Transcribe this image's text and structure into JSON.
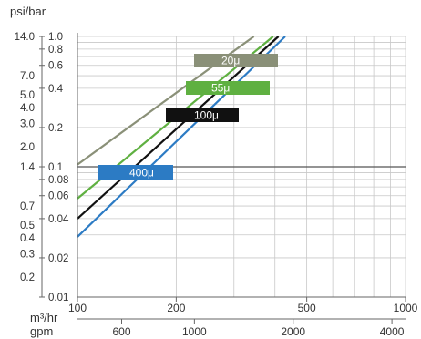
{
  "chart_data": {
    "type": "line",
    "xlabel": "m³/hr",
    "x2label": "gpm",
    "ylabel": "psi/bar",
    "x_scale": "log",
    "y_scale": "log",
    "xlim": [
      100,
      1000
    ],
    "ylim": [
      0.01,
      1.0
    ],
    "grid": true,
    "x_ticks_m3hr": [
      "100",
      "200",
      "500",
      "1000"
    ],
    "x_ticks_gpm": [
      "600",
      "1000",
      "2000",
      "4000"
    ],
    "y_ticks_bar": [
      "1.0",
      "0.8",
      "0.6",
      "0.4",
      "0.2",
      "0.1",
      "0.08",
      "0.06",
      "0.04",
      "0.02",
      "0.01"
    ],
    "y_ticks_psi": [
      "14.0",
      "7.0",
      "5.0",
      "4.0",
      "3.0",
      "2.0",
      "1.4",
      "0.7",
      "0.5",
      "0.4",
      "0.3",
      "0.2"
    ],
    "reference_line_bar": 0.1,
    "series": [
      {
        "name": "20μ",
        "color": "#8a9078",
        "x": [
          100,
          345
        ],
        "y": [
          0.104,
          1.0
        ]
      },
      {
        "name": "55μ",
        "color": "#5fb041",
        "x": [
          100,
          395
        ],
        "y": [
          0.057,
          1.0
        ]
      },
      {
        "name": "100μ",
        "color": "#111111",
        "x": [
          100,
          410
        ],
        "y": [
          0.04,
          1.0
        ]
      },
      {
        "name": "400μ",
        "color": "#2c7bc4",
        "x": [
          100,
          430
        ],
        "y": [
          0.029,
          1.0
        ]
      }
    ]
  }
}
